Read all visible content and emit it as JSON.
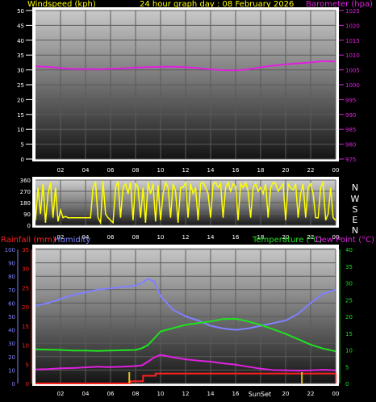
{
  "header": {
    "left_title": "Windspeed (kph)",
    "center_title": "24 hour graph day : 08 February 2026",
    "right_title": "Barometer (hpa)"
  },
  "direction_letters": [
    "N",
    "W",
    "S",
    "E",
    "N"
  ],
  "bottom_header": {
    "rain": "Rainfall (mm)",
    "humidity": "Humidity",
    "temperature": "Temperature (°C)",
    "dewpoint": "Dew Point (°C)"
  },
  "colors": {
    "wind": "#ffffff",
    "barometer": "#e020e0",
    "direction": "#ffff00",
    "rain": "#ff2020",
    "humidity": "#8080ff",
    "temperature": "#20e020",
    "dewpoint": "#e020e0",
    "header_text": "#ffff00"
  },
  "chart_data": [
    {
      "type": "line",
      "title": "24 hour graph day : 08 February 2026",
      "x_ticks": [
        "02",
        "04",
        "06",
        "08",
        "10",
        "12",
        "14",
        "16",
        "18",
        "20",
        "22",
        "00"
      ],
      "xlim": [
        0,
        24
      ],
      "ylabel": "Windspeed (kph)",
      "ylim": [
        0,
        50
      ],
      "y_ticks": [
        0,
        5,
        10,
        15,
        20,
        25,
        30,
        35,
        40,
        45,
        50
      ],
      "y2label": "Barometer (hpa)",
      "y2lim": [
        975,
        1025
      ],
      "y2_ticks": [
        975,
        980,
        985,
        990,
        995,
        1000,
        1005,
        1010,
        1015,
        1020,
        1025
      ],
      "grid": true,
      "series": [
        {
          "name": "Barometer (hpa)",
          "axis": "right",
          "x": [
            0,
            1,
            2,
            3,
            4,
            5,
            6,
            7,
            8,
            9,
            10,
            11,
            12,
            13,
            14,
            15,
            16,
            17,
            18,
            19,
            20,
            21,
            22,
            23,
            24
          ],
          "values": [
            1006.2,
            1006.0,
            1005.6,
            1005.3,
            1005.3,
            1005.2,
            1005.4,
            1005.5,
            1005.8,
            1005.9,
            1006.0,
            1006.1,
            1005.9,
            1005.6,
            1005.2,
            1004.9,
            1004.8,
            1005.2,
            1005.9,
            1006.4,
            1006.9,
            1007.2,
            1007.5,
            1008.0,
            1007.8
          ]
        }
      ]
    },
    {
      "type": "line",
      "title": "",
      "x_ticks": [
        "02",
        "04",
        "06",
        "08",
        "10",
        "12",
        "14",
        "16",
        "18",
        "20",
        "22",
        "00"
      ],
      "xlim": [
        0,
        24
      ],
      "ylim": [
        0,
        360
      ],
      "y_ticks": [
        0,
        90,
        180,
        270,
        360
      ],
      "y_tick_labels": [
        "0",
        "90",
        "180",
        "270",
        "360"
      ],
      "grid": true,
      "series": [
        {
          "name": "Wind direction",
          "x": [
            0,
            0.2,
            0.4,
            0.6,
            0.8,
            1,
            1.2,
            1.4,
            1.6,
            1.8,
            2,
            2.2,
            2.4,
            2.6,
            2.8,
            3,
            3.2,
            3.4,
            3.6,
            3.8,
            4,
            4.2,
            4.4,
            4.6,
            4.8,
            5,
            5.2,
            5.4,
            5.6,
            5.8,
            6,
            6.2,
            6.4,
            6.6,
            6.8,
            7,
            7.2,
            7.4,
            7.6,
            7.8,
            8,
            8.2,
            8.4,
            8.6,
            8.8,
            9,
            9.2,
            9.4,
            9.6,
            9.8,
            10,
            10.2,
            10.4,
            10.6,
            10.8,
            11,
            11.2,
            11.4,
            11.6,
            11.8,
            12,
            12.2,
            12.4,
            12.6,
            12.8,
            13,
            13.2,
            13.4,
            13.6,
            13.8,
            14,
            14.2,
            14.4,
            14.6,
            14.8,
            15,
            15.2,
            15.4,
            15.6,
            15.8,
            16,
            16.2,
            16.4,
            16.6,
            16.8,
            17,
            17.2,
            17.4,
            17.6,
            17.8,
            18,
            18.2,
            18.4,
            18.6,
            18.8,
            19,
            19.2,
            19.4,
            19.6,
            19.8,
            20,
            20.2,
            20.4,
            20.6,
            20.8,
            21,
            21.2,
            21.4,
            21.6,
            21.8,
            22,
            22.2,
            22.4,
            22.6,
            22.8,
            23,
            23.2,
            23.4,
            23.6,
            23.8,
            24
          ],
          "values": [
            40,
            300,
            90,
            330,
            20,
            250,
            340,
            60,
            300,
            30,
            120,
            60,
            70,
            60,
            60,
            60,
            60,
            60,
            60,
            60,
            60,
            60,
            60,
            300,
            340,
            60,
            20,
            350,
            90,
            60,
            40,
            20,
            300,
            350,
            60,
            300,
            330,
            250,
            340,
            40,
            330,
            300,
            60,
            300,
            20,
            340,
            250,
            330,
            30,
            320,
            40,
            250,
            340,
            300,
            60,
            330,
            270,
            20,
            300,
            300,
            340,
            60,
            330,
            250,
            300,
            40,
            330,
            340,
            300,
            250,
            60,
            330,
            340,
            300,
            330,
            60,
            300,
            340,
            270,
            330,
            310,
            40,
            330,
            300,
            340,
            270,
            60,
            300,
            330,
            270,
            300,
            250,
            330,
            60,
            300,
            340,
            330,
            270,
            300,
            330,
            40,
            330,
            300,
            280,
            330,
            60,
            250,
            330,
            60,
            300,
            330,
            250,
            60,
            60,
            300,
            340,
            40,
            90,
            300,
            60,
            40
          ]
        }
      ]
    },
    {
      "type": "line",
      "title": "",
      "x_ticks": [
        "02",
        "04",
        "06",
        "08",
        "10",
        "12",
        "14",
        "16",
        "18",
        "20",
        "22",
        "00"
      ],
      "xlim": [
        0,
        24
      ],
      "humidity_axis": {
        "label": "Humidity",
        "ylim": [
          0,
          100
        ],
        "ticks": [
          0,
          10,
          20,
          30,
          40,
          50,
          60,
          70,
          80,
          90,
          100
        ]
      },
      "rain_axis": {
        "label": "Rainfall (mm)",
        "ylim": [
          0,
          35
        ],
        "ticks": [
          0,
          5,
          10,
          15,
          20,
          25,
          30,
          35
        ]
      },
      "temp_axis": {
        "label": "Temperature (°C)",
        "ylim": [
          0,
          40
        ],
        "ticks": [
          0,
          5,
          10,
          15,
          20,
          25,
          30,
          35,
          40
        ]
      },
      "annotations": [
        "SunSet"
      ],
      "grid": true,
      "series": [
        {
          "name": "Humidity",
          "axis": "humidity",
          "x": [
            0,
            1,
            2,
            3,
            4,
            5,
            6,
            7,
            8,
            8.5,
            9,
            9.5,
            10,
            11,
            12,
            13,
            14,
            15,
            16,
            17,
            18,
            19,
            20,
            21,
            22,
            23,
            24
          ],
          "values": [
            58,
            60,
            63,
            66,
            68,
            70,
            71,
            72,
            73,
            75,
            78,
            76,
            65,
            55,
            50,
            47,
            43,
            41,
            40,
            41,
            43,
            45,
            47,
            52,
            60,
            67,
            70
          ]
        },
        {
          "name": "Temperature (°C)",
          "axis": "temp",
          "x": [
            0,
            1,
            2,
            3,
            4,
            5,
            6,
            7,
            8,
            8.5,
            9,
            9.5,
            10,
            11,
            12,
            13,
            14,
            15,
            16,
            17,
            18,
            19,
            20,
            21,
            22,
            23,
            24
          ],
          "values": [
            10.2,
            10.1,
            10.0,
            9.8,
            9.8,
            9.7,
            9.8,
            9.9,
            10.0,
            10.5,
            11.5,
            13.5,
            15.5,
            16.5,
            17.5,
            18.0,
            18.5,
            19.2,
            19.3,
            18.5,
            17.5,
            16.2,
            14.8,
            13.2,
            11.6,
            10.4,
            9.6
          ]
        },
        {
          "name": "Dew Point (°C)",
          "axis": "temp",
          "x": [
            0,
            1,
            2,
            3,
            4,
            5,
            6,
            7,
            8,
            8.5,
            9,
            9.5,
            10,
            11,
            12,
            13,
            14,
            15,
            16,
            17,
            18,
            19,
            20,
            21,
            22,
            23,
            24
          ],
          "values": [
            4.2,
            4.3,
            4.5,
            4.6,
            4.8,
            5.0,
            4.9,
            5.0,
            5.2,
            5.4,
            6.5,
            7.8,
            8.5,
            7.8,
            7.2,
            6.8,
            6.5,
            6.0,
            5.6,
            5.0,
            4.4,
            4.0,
            3.9,
            3.8,
            3.9,
            4.1,
            3.9
          ]
        },
        {
          "name": "Rainfall (mm)",
          "axis": "rain",
          "x": [
            0,
            7.6,
            7.6,
            8.6,
            8.6,
            9.6,
            9.6,
            24,
            24
          ],
          "values": [
            0,
            0,
            0.6,
            0.6,
            2.0,
            2.0,
            2.6,
            2.6,
            0
          ]
        }
      ]
    }
  ]
}
